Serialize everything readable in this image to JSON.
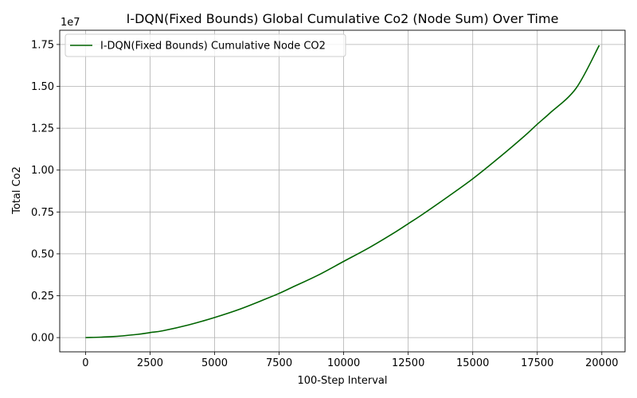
{
  "chart_data": {
    "type": "line",
    "title": "I-DQN(Fixed Bounds) Global Cumulative Co2 (Node Sum) Over Time",
    "xlabel": "100-Step Interval",
    "ylabel": "Total Co2",
    "offset_label": "1e7",
    "xlim": [
      -1000,
      20900
    ],
    "ylim": [
      -850000,
      18350000
    ],
    "xticks": [
      0,
      2500,
      5000,
      7500,
      10000,
      12500,
      15000,
      17500,
      20000
    ],
    "yticks": [
      0,
      2500000,
      5000000,
      7500000,
      10000000,
      12500000,
      15000000,
      17500000
    ],
    "ytick_labels": [
      "0.00",
      "0.25",
      "0.50",
      "0.75",
      "1.00",
      "1.25",
      "1.50",
      "1.75"
    ],
    "grid": true,
    "legend_position": "upper-left",
    "series": [
      {
        "name": "I-DQN(Fixed Bounds) Cumulative Node CO2",
        "color": "#006400",
        "x": [
          0,
          1000,
          2000,
          2500,
          3000,
          4000,
          5000,
          6000,
          7000,
          7500,
          8000,
          9000,
          10000,
          11000,
          12000,
          12500,
          13000,
          14000,
          15000,
          16000,
          17000,
          17500,
          18000,
          19000,
          19900
        ],
        "y": [
          0,
          55000,
          190000,
          300000,
          410000,
          760000,
          1200000,
          1710000,
          2320000,
          2640000,
          3000000,
          3720000,
          4550000,
          5380000,
          6300000,
          6800000,
          7300000,
          8370000,
          9480000,
          10720000,
          12030000,
          12740000,
          13420000,
          14880000,
          17450000
        ]
      }
    ]
  }
}
